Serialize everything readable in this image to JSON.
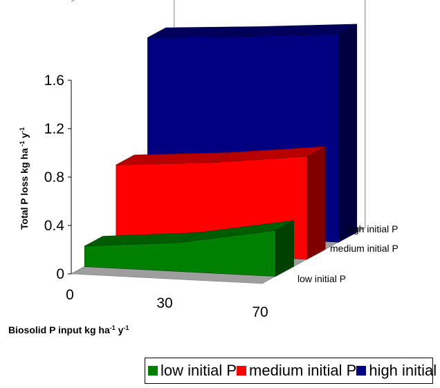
{
  "chart_data": {
    "type": "area",
    "subtype": "3d-area",
    "title": "",
    "xlabel": "Biosolid P input kg ha-1 y-1",
    "ylabel": "Total P loss kg ha-1 y-1",
    "ylim": [
      0,
      1.6
    ],
    "yticks": [
      "0",
      "0.4",
      "0.8",
      "1.2",
      "1.6"
    ],
    "categories": [
      "0",
      "30",
      "70"
    ],
    "grid": false,
    "legend_position": "bottom",
    "series": [
      {
        "name": "low initial P",
        "color": "#008000",
        "values": [
          0.17,
          0.24,
          0.38
        ]
      },
      {
        "name": "medium initial P",
        "color": "#ff0000",
        "values": [
          0.7,
          0.76,
          0.85
        ]
      },
      {
        "name": "high initial P",
        "color": "#000080",
        "values": [
          1.61,
          1.66,
          1.72
        ]
      }
    ]
  },
  "axis": {
    "x_title_main": "Biosolid P input kg ha",
    "x_title_sup1": "-1",
    "x_title_mid": " y",
    "x_title_sup2": "-1",
    "y_title_main": "Total P loss kg ha",
    "y_title_sup1": " -1",
    "y_title_mid": " y",
    "y_title_sup2": "-1"
  },
  "depth_labels": [
    "low  initial P",
    "medium initial P",
    "high initial P"
  ],
  "legend": [
    {
      "label": "low initial P",
      "color": "#008000"
    },
    {
      "label": "medium initial P",
      "color": "#ff0000"
    },
    {
      "label": "high initial P",
      "color": "#000080"
    }
  ]
}
